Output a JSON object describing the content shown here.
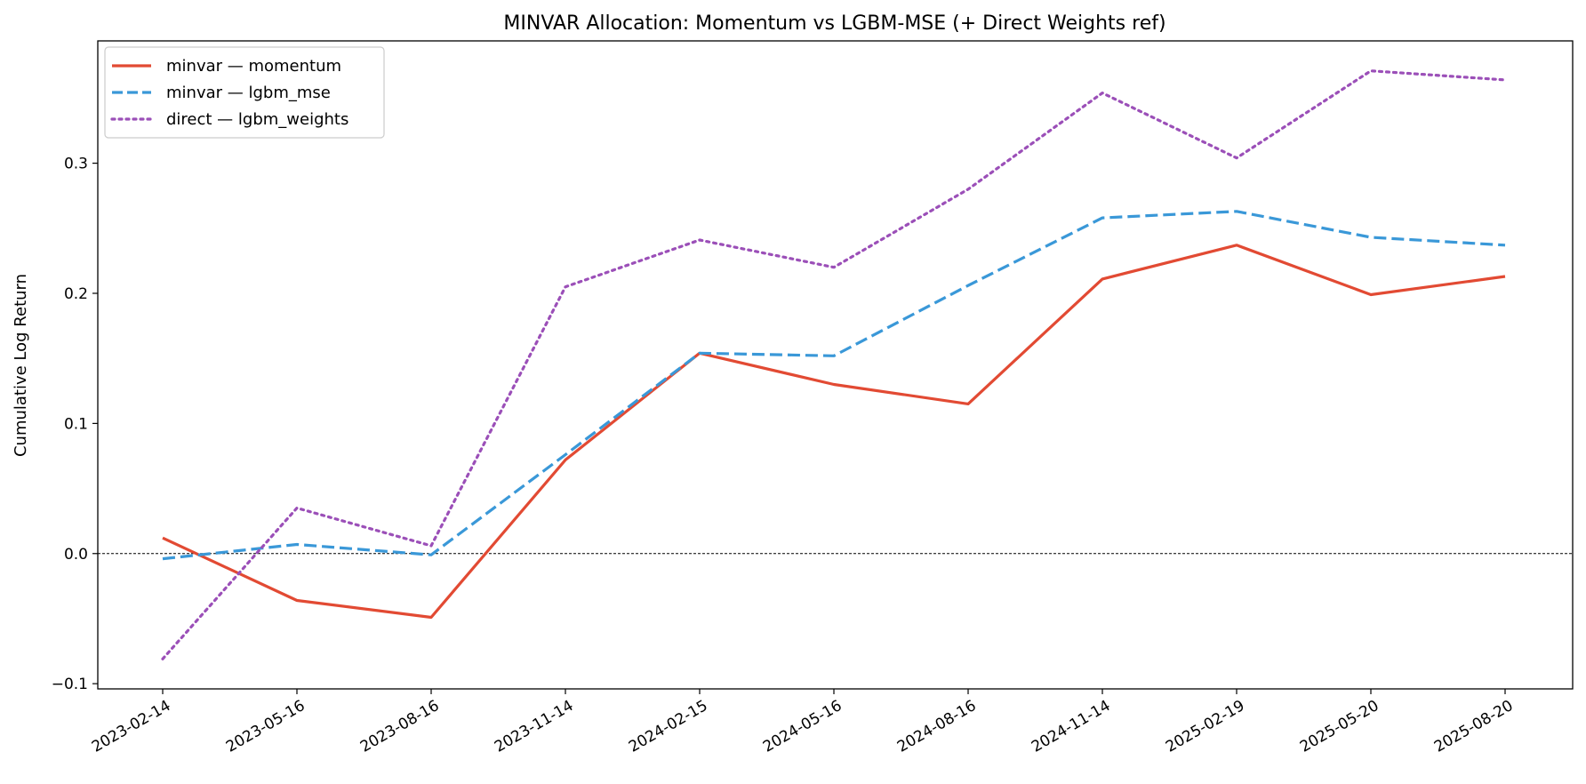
{
  "chart_data": {
    "type": "line",
    "title": "MINVAR Allocation: Momentum vs LGBM-MSE (+ Direct Weights ref)",
    "xlabel": "",
    "ylabel": "Cumulative Log Return",
    "x": [
      "2023-02-14",
      "2023-05-16",
      "2023-08-16",
      "2023-11-14",
      "2024-02-15",
      "2024-05-16",
      "2024-08-16",
      "2024-11-14",
      "2025-02-19",
      "2025-05-20",
      "2025-08-20"
    ],
    "ylim": [
      -0.104,
      0.394
    ],
    "yticks": [
      -0.1,
      0.0,
      0.1,
      0.2,
      0.3
    ],
    "ytick_labels": [
      "−0.1",
      "0.0",
      "0.1",
      "0.2",
      "0.3"
    ],
    "reference_line": {
      "y": 0.0,
      "style": "dashed",
      "color": "#000000"
    },
    "grid": false,
    "legend_position": "top-left",
    "series": [
      {
        "name": "minvar — momentum",
        "color": "#e24a33",
        "style": "solid",
        "values": [
          0.012,
          -0.036,
          -0.049,
          0.072,
          0.154,
          0.13,
          0.115,
          0.211,
          0.237,
          0.199,
          0.213
        ]
      },
      {
        "name": "minvar — lgbm_mse",
        "color": "#3a98d8",
        "style": "dashed",
        "values": [
          -0.004,
          0.007,
          -0.001,
          0.076,
          0.154,
          0.152,
          0.206,
          0.258,
          0.263,
          0.243,
          0.237
        ]
      },
      {
        "name": "direct — lgbm_weights",
        "color": "#9b4fb8",
        "style": "dotted",
        "values": [
          -0.081,
          0.035,
          0.006,
          0.205,
          0.241,
          0.22,
          0.28,
          0.354,
          0.304,
          0.371,
          0.364
        ]
      }
    ]
  }
}
